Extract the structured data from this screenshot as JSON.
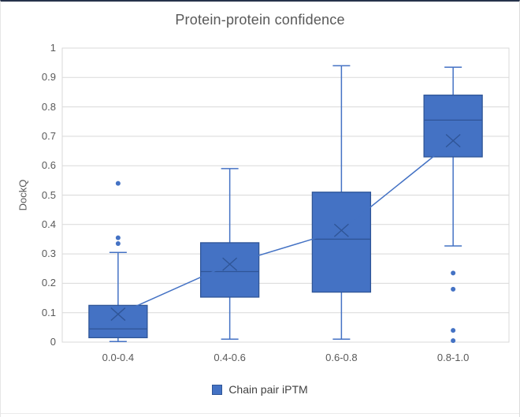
{
  "chart_data": {
    "type": "boxplot",
    "title": "Protein-protein confidence",
    "xlabel": "",
    "ylabel": "DockQ",
    "ylim": [
      0,
      1
    ],
    "ytick_step": 0.1,
    "ytick_labels": [
      "0",
      "0.1",
      "0.2",
      "0.3",
      "0.4",
      "0.5",
      "0.6",
      "0.7",
      "0.8",
      "0.9",
      "1"
    ],
    "categories": [
      "0.0-0.4",
      "0.4-0.6",
      "0.6-0.8",
      "0.8-1.0"
    ],
    "grid": true,
    "legend_position": "bottom",
    "legend": {
      "label": "Chain pair iPTM"
    },
    "series": [
      {
        "name": "Chain pair iPTM",
        "boxes": [
          {
            "category": "0.0-0.4",
            "whisker_low": 0.002,
            "q1": 0.015,
            "median": 0.045,
            "q3": 0.125,
            "whisker_high": 0.305,
            "mean": 0.095,
            "outliers": [
              0.335,
              0.355,
              0.54
            ]
          },
          {
            "category": "0.4-0.6",
            "whisker_low": 0.01,
            "q1": 0.153,
            "median": 0.24,
            "q3": 0.338,
            "whisker_high": 0.59,
            "mean": 0.265,
            "outliers": []
          },
          {
            "category": "0.6-0.8",
            "whisker_low": 0.01,
            "q1": 0.17,
            "median": 0.35,
            "q3": 0.51,
            "whisker_high": 0.94,
            "mean": 0.38,
            "outliers": []
          },
          {
            "category": "0.8-1.0",
            "whisker_low": 0.327,
            "q1": 0.63,
            "median": 0.755,
            "q3": 0.84,
            "whisker_high": 0.935,
            "mean": 0.685,
            "outliers": [
              0.235,
              0.18,
              0.04,
              0.005
            ]
          }
        ]
      }
    ],
    "mean_line_values": [
      0.095,
      0.265,
      0.38,
      0.685
    ]
  },
  "colors": {
    "box_fill": "#4472C4",
    "box_border": "#2F5597",
    "median_line": "#2F5597",
    "whisker": "#4472C4",
    "mean_marker": "#2F5597",
    "mean_line": "#4472C4",
    "outlier": "#4472C4",
    "gridline": "#D9D9D9",
    "axis_line": "#C6C6C6",
    "axis_text": "#595959",
    "title_text": "#595959",
    "legend_text": "#404040"
  }
}
